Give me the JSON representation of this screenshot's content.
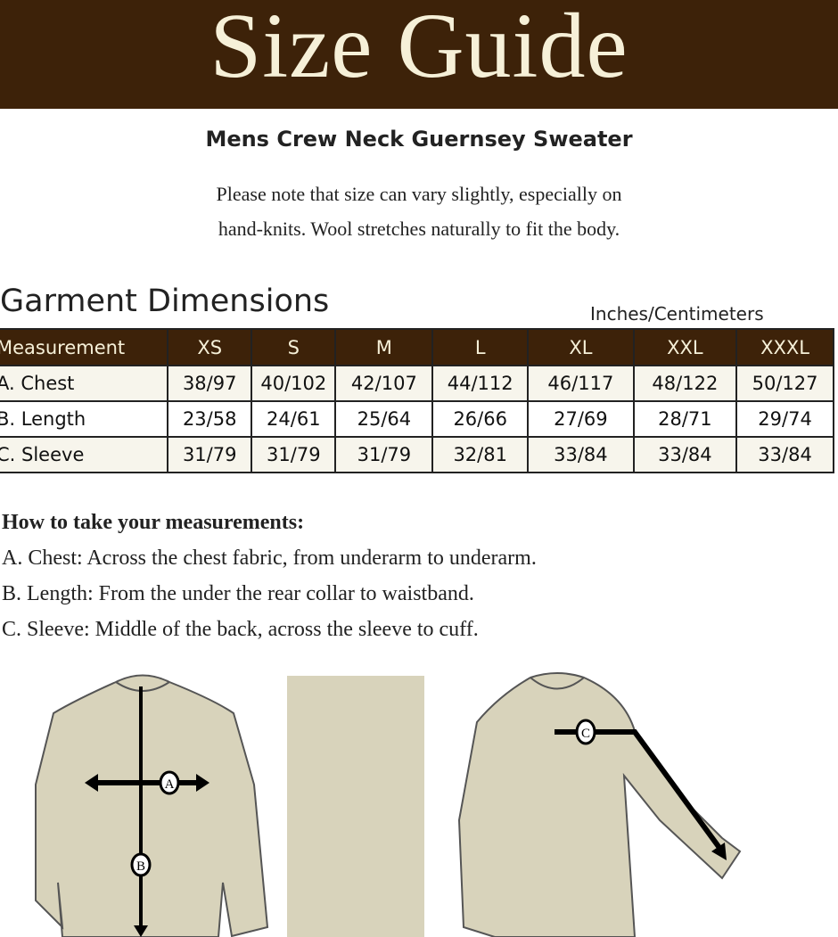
{
  "header": {
    "title": "Size Guide"
  },
  "product": {
    "name": "Mens Crew Neck Guernsey Sweater"
  },
  "note": {
    "line1": "Please note that size can vary slightly, especially on",
    "line2": "hand-knits.  Wool stretches naturally to fit the body."
  },
  "dimensions": {
    "title": "Garment Dimensions",
    "units": "Inches/Centimeters",
    "columns": [
      "Measurement",
      "XS",
      "S",
      "M",
      "L",
      "XL",
      "XXL",
      "XXXL"
    ],
    "rows": [
      [
        "A. Chest",
        "38/97",
        "40/102",
        "42/107",
        "44/112",
        "46/117",
        "48/122",
        "50/127"
      ],
      [
        "B. Length",
        "23/58",
        "24/61",
        "25/64",
        "26/66",
        "27/69",
        "28/71",
        "29/74"
      ],
      [
        "C. Sleeve",
        "31/79",
        "31/79",
        "31/79",
        "32/81",
        "33/84",
        "33/84",
        "33/84"
      ]
    ]
  },
  "howto": {
    "heading": "How to take your measurements:",
    "items": [
      "A. Chest: Across the chest fabric, from underarm to underarm.",
      "B. Length: From the under the rear collar to waistband.",
      "C. Sleeve: Middle of the back, across the sleeve to cuff."
    ]
  },
  "illustration": {
    "markers": [
      "A",
      "B",
      "C"
    ],
    "colors": {
      "sweater": "#d8d3bb",
      "header": "#3d2209"
    }
  }
}
